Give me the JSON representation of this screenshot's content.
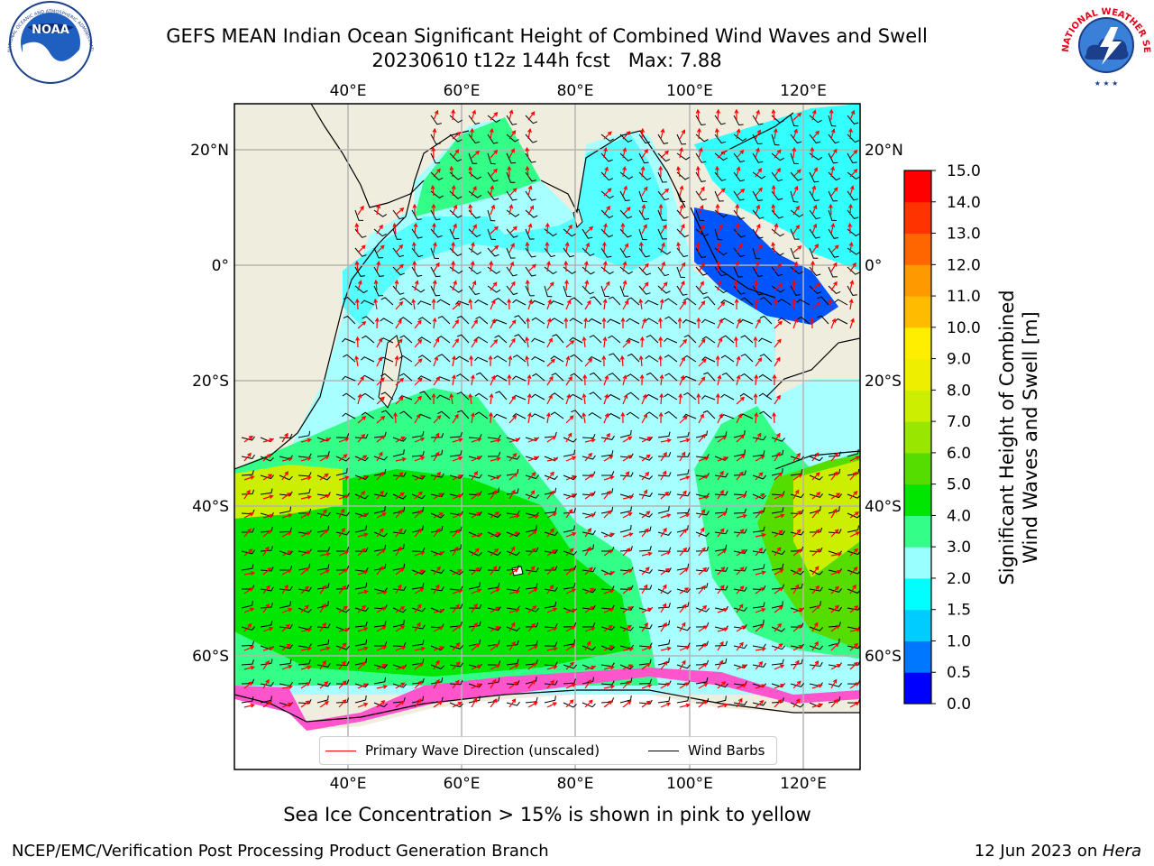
{
  "title": {
    "line1": "GEFS MEAN Indian Ocean Significant Height of Combined Wind Waves and Swell",
    "line2": "20230610 t12z 144h fcst   Max: 7.88"
  },
  "map": {
    "lon_ticks": [
      "40°E",
      "60°E",
      "80°E",
      "100°E",
      "120°E"
    ],
    "lat_ticks": [
      "20°N",
      "0°",
      "20°S",
      "40°S",
      "60°S"
    ],
    "lon_range": [
      20,
      130
    ],
    "lat_range": [
      -70,
      27
    ],
    "colors": {
      "land": "#efedde",
      "ice": "#ffffff",
      "grid": "#b4b4b4"
    }
  },
  "legend": {
    "wave_direction": "Primary Wave Direction (unscaled)",
    "wind_barbs": "Wind Barbs",
    "wave_color": "#ff0000",
    "barb_color": "#000000"
  },
  "colorbar": {
    "label_line1": "Significant Height of Combined",
    "label_line2": "Wind Waves and Swell [m]",
    "ticks": [
      "0.0",
      "0.5",
      "1.0",
      "1.5",
      "2.0",
      "3.0",
      "4.0",
      "5.0",
      "6.0",
      "7.0",
      "8.0",
      "9.0",
      "10.0",
      "11.0",
      "12.0",
      "13.0",
      "14.0",
      "15.0"
    ],
    "colors": [
      "#0000ff",
      "#0077ff",
      "#00ccff",
      "#00ffff",
      "#99ffff",
      "#33ff88",
      "#00e600",
      "#55dd00",
      "#99e600",
      "#ccee00",
      "#eeee00",
      "#ffee00",
      "#ffbb00",
      "#ff9900",
      "#ff6600",
      "#ff3300",
      "#ff0000"
    ]
  },
  "notes": {
    "ice": "Sea Ice Concentration > 15% is shown in pink to yellow",
    "footer_left": "NCEP/EMC/Verification Post Processing Product Generation Branch",
    "footer_right_date": "12 Jun 2023 on ",
    "footer_right_host": "Hera"
  },
  "logos": {
    "noaa_text": "NOAA",
    "noaa_ring": "NATIONAL OCEANIC AND ATMOSPHERIC ADMINISTRATION · U.S. DEPARTMENT OF COMMERCE",
    "nws_ring": "NATIONAL WEATHER SERVICE"
  }
}
